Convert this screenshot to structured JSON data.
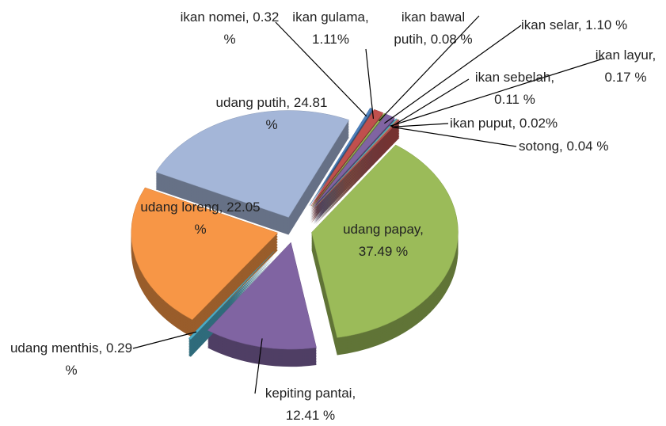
{
  "chart_data": {
    "type": "pie",
    "categories": [
      "udang papay",
      "kepiting pantai",
      "udang menthis",
      "udang loreng",
      "udang putih",
      "ikan nomei",
      "ikan gulama",
      "ikan bawal putih",
      "ikan selar",
      "ikan layur",
      "ikan sebelah",
      "ikan puput",
      "sotong"
    ],
    "values": [
      37.49,
      12.41,
      0.29,
      22.05,
      24.81,
      0.32,
      1.11,
      0.08,
      1.1,
      0.17,
      0.11,
      0.02,
      0.04
    ],
    "value_labels": [
      "37.49 %",
      "12.41 %",
      "0.29 %",
      "22.05 %",
      "24.81 %",
      "0.32 %",
      "1.11%",
      "0.08 %",
      "1.10 %",
      "0.17 %",
      "0.11 %",
      "0.02%",
      "0.04 %"
    ],
    "label_separator": ",",
    "colors": [
      "#9bbb59",
      "#8064a2",
      "#4bacc6",
      "#f79646",
      "#a4b6d8",
      "#4f81bd",
      "#c0504d",
      "#9bbb59",
      "#8064a2",
      "#4bacc6",
      "#f79646",
      "#4f81bd",
      "#c0504d"
    ]
  }
}
